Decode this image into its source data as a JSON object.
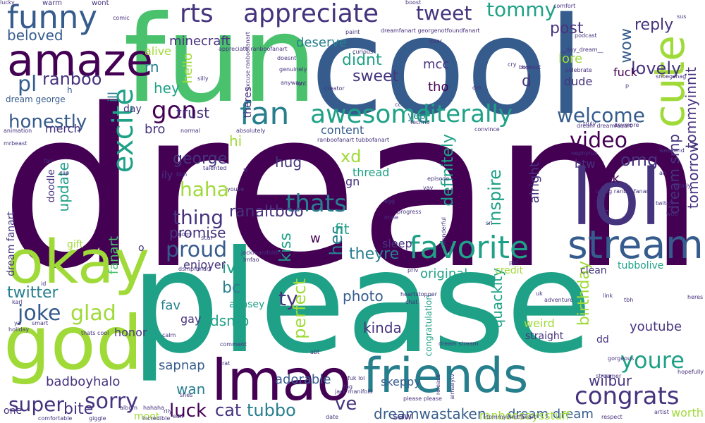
{
  "palette": {
    "purple": "#440154",
    "indigo": "#46337e",
    "blue": "#365c8d",
    "steel": "#277f8e",
    "teal": "#1fa187",
    "green": "#4ac16d",
    "lime": "#a0da39",
    "yellow": "#fde725"
  },
  "words": [
    {
      "t": "dream",
      "c": "purple"
    },
    {
      "t": "please",
      "c": "teal"
    },
    {
      "t": "cool",
      "c": "blue"
    },
    {
      "t": "fun",
      "c": "green"
    },
    {
      "t": "god",
      "c": "lime"
    },
    {
      "t": "okay",
      "c": "lime"
    },
    {
      "t": "lol",
      "c": "indigo"
    },
    {
      "t": "lmao",
      "c": "purple"
    },
    {
      "t": "friends",
      "c": "steel"
    },
    {
      "t": "amaze",
      "c": "purple"
    },
    {
      "t": "funny",
      "c": "blue"
    },
    {
      "t": "cute",
      "c": "lime"
    },
    {
      "t": "stream",
      "c": "blue"
    },
    {
      "t": "favorite",
      "c": "teal"
    },
    {
      "t": "rts",
      "c": "indigo"
    },
    {
      "t": "appreciate",
      "c": "indigo"
    },
    {
      "t": "excite",
      "c": "teal"
    },
    {
      "t": "fan",
      "c": "steel"
    },
    {
      "t": "awesome",
      "c": "teal"
    },
    {
      "t": "literally",
      "c": "teal"
    },
    {
      "t": "congrats",
      "c": "indigo"
    },
    {
      "t": "youre",
      "c": "teal"
    },
    {
      "t": "tweet",
      "c": "indigo"
    },
    {
      "t": "tommy",
      "c": "teal"
    },
    {
      "t": "lovely",
      "c": "indigo"
    },
    {
      "t": "reply",
      "c": "indigo"
    },
    {
      "t": "wow",
      "c": "blue"
    },
    {
      "t": "post",
      "c": "indigo"
    },
    {
      "t": "dream smp",
      "c": "indigo"
    },
    {
      "t": "tommyinnit",
      "c": "indigo"
    },
    {
      "t": "tomorrow",
      "c": "indigo"
    },
    {
      "t": "welcome",
      "c": "blue"
    },
    {
      "t": "video",
      "c": "purple"
    },
    {
      "t": "omg",
      "c": "indigo"
    },
    {
      "t": "thats",
      "c": "steel"
    },
    {
      "t": "gon",
      "c": "purple"
    },
    {
      "t": "haha",
      "c": "lime"
    },
    {
      "t": "thing",
      "c": "indigo"
    },
    {
      "t": "proud",
      "c": "blue"
    },
    {
      "t": "sorry",
      "c": "indigo"
    },
    {
      "t": "super",
      "c": "indigo"
    },
    {
      "t": "joke",
      "c": "blue"
    },
    {
      "t": "glad",
      "c": "lime"
    },
    {
      "t": "twitter",
      "c": "steel"
    },
    {
      "t": "honestly",
      "c": "blue"
    },
    {
      "t": "pl",
      "c": "blue"
    },
    {
      "t": "beloved",
      "c": "blue"
    },
    {
      "t": "ranboo",
      "c": "indigo"
    },
    {
      "t": "minecraft",
      "c": "indigo"
    },
    {
      "t": "didnt",
      "c": "teal"
    },
    {
      "t": "sweet",
      "c": "indigo"
    },
    {
      "t": "deserve",
      "c": "steel"
    },
    {
      "t": "mcc",
      "c": "indigo"
    },
    {
      "t": "tho",
      "c": "purple"
    },
    {
      "t": "lore",
      "c": "lime"
    },
    {
      "t": "dude",
      "c": "indigo"
    },
    {
      "t": "fuck",
      "c": "purple"
    },
    {
      "t": "d",
      "c": "indigo"
    },
    {
      "t": "trust",
      "c": "indigo"
    },
    {
      "t": "hey",
      "c": "teal"
    },
    {
      "t": "hello",
      "c": "lime"
    },
    {
      "t": "rn",
      "c": "steel"
    },
    {
      "t": "alive",
      "c": "lime"
    },
    {
      "t": "ill",
      "c": "steel"
    },
    {
      "t": "hi",
      "c": "lime"
    },
    {
      "t": "hug",
      "c": "indigo"
    },
    {
      "t": "xd",
      "c": "lime"
    },
    {
      "t": "george",
      "c": "indigo"
    },
    {
      "t": "update",
      "c": "teal"
    },
    {
      "t": "ranaltboo",
      "c": "indigo"
    },
    {
      "t": "definitely",
      "c": "teal"
    },
    {
      "t": "inspire",
      "c": "teal"
    },
    {
      "t": "alright",
      "c": "indigo"
    },
    {
      "t": "idk",
      "c": "purple"
    },
    {
      "t": "btw",
      "c": "indigo"
    },
    {
      "t": "hes",
      "c": "steel"
    },
    {
      "t": "theyre",
      "c": "steel"
    },
    {
      "t": "ive",
      "c": "teal"
    },
    {
      "t": "bc",
      "c": "steel"
    },
    {
      "t": "fav",
      "c": "steel"
    },
    {
      "t": "dsmp",
      "c": "teal"
    },
    {
      "t": "ty",
      "c": "indigo"
    },
    {
      "t": "kinda",
      "c": "indigo"
    },
    {
      "t": "original",
      "c": "teal"
    },
    {
      "t": "perfect",
      "c": "lime"
    },
    {
      "t": "kiss",
      "c": "teal"
    },
    {
      "t": "quackity",
      "c": "teal"
    },
    {
      "t": "birthday",
      "c": "lime"
    },
    {
      "t": "youtube",
      "c": "indigo"
    },
    {
      "t": "wilbur",
      "c": "indigo"
    },
    {
      "t": "ve",
      "c": "indigo"
    },
    {
      "t": "tubbo",
      "c": "steel"
    },
    {
      "t": "cat",
      "c": "indigo"
    },
    {
      "t": "luck",
      "c": "purple"
    },
    {
      "t": "wan",
      "c": "steel"
    },
    {
      "t": "bite",
      "c": "indigo"
    },
    {
      "t": "badboyhalo",
      "c": "indigo"
    },
    {
      "t": "sapnap",
      "c": "blue"
    },
    {
      "t": "adorable",
      "c": "blue"
    },
    {
      "t": "skeppy",
      "c": "blue"
    },
    {
      "t": "dreamwastaken",
      "c": "blue"
    },
    {
      "t": "dream dream",
      "c": "blue"
    },
    {
      "t": "worth",
      "c": "lime"
    },
    {
      "t": "ranboosaysstuff",
      "c": "lime"
    },
    {
      "t": "promise",
      "c": "indigo"
    },
    {
      "t": "content",
      "c": "blue"
    },
    {
      "t": "fanart",
      "c": "green"
    },
    {
      "t": "bro",
      "c": "indigo"
    },
    {
      "t": "merch",
      "c": "indigo"
    },
    {
      "t": "day",
      "c": "indigo"
    },
    {
      "t": "gift",
      "c": "lime"
    },
    {
      "t": "dream fanart",
      "c": "indigo"
    },
    {
      "t": "sleep",
      "c": "indigo"
    },
    {
      "t": "fit",
      "c": "teal"
    },
    {
      "t": "yep",
      "c": "steel"
    },
    {
      "t": "thread",
      "c": "teal"
    },
    {
      "t": "gn",
      "c": "indigo"
    },
    {
      "t": "w",
      "c": "purple"
    },
    {
      "t": "enjoyer",
      "c": "indigo"
    },
    {
      "t": "aimsey",
      "c": "teal"
    },
    {
      "t": "gay",
      "c": "indigo"
    },
    {
      "t": "photo",
      "c": "blue"
    },
    {
      "t": "congratulation",
      "c": "teal"
    },
    {
      "t": "weird",
      "c": "lime"
    },
    {
      "t": "straight",
      "c": "indigo"
    },
    {
      "t": "clean",
      "c": "indigo"
    },
    {
      "t": "tubbolive",
      "c": "teal"
    },
    {
      "t": "credit",
      "c": "lime"
    },
    {
      "t": "honor",
      "c": "indigo"
    },
    {
      "t": "moot",
      "c": "lime"
    },
    {
      "t": "saw",
      "c": "indigo"
    },
    {
      "t": "dd",
      "c": "indigo"
    },
    {
      "t": "one",
      "c": "indigo"
    },
    {
      "t": "dream george",
      "c": "blue"
    },
    {
      "t": "h",
      "c": "blue"
    },
    {
      "t": "ily",
      "c": "indigo"
    },
    {
      "t": "o",
      "c": "indigo"
    },
    {
      "t": "doodle",
      "c": "indigo"
    },
    {
      "t": "n",
      "c": "indigo"
    },
    {
      "t": "theres",
      "c": "indigo"
    },
    {
      "t": "warm",
      "c": "indigo"
    },
    {
      "t": "wont",
      "c": "indigo"
    },
    {
      "t": "comic",
      "c": "indigo"
    },
    {
      "t": "boost",
      "c": "indigo"
    },
    {
      "t": "comfort",
      "c": "indigo"
    },
    {
      "t": "podcast",
      "c": "indigo"
    },
    {
      "t": "sus",
      "c": "indigo"
    },
    {
      "t": "honest",
      "c": "indigo"
    },
    {
      "t": "dreamfanart georgenotfoundfanart",
      "c": "indigo"
    },
    {
      "t": "appreciate ranboofanart",
      "c": "indigo"
    },
    {
      "t": "excuse ranboofanart",
      "c": "indigo"
    },
    {
      "t": "paint",
      "c": "indigo"
    },
    {
      "t": "dear",
      "c": "indigo"
    },
    {
      "t": "curious",
      "c": "indigo"
    },
    {
      "t": "__day_dream__",
      "c": "indigo"
    },
    {
      "t": "doesnt",
      "c": "indigo"
    },
    {
      "t": "genuinely",
      "c": "indigo"
    },
    {
      "t": "cry",
      "c": "indigo"
    },
    {
      "t": "boys",
      "c": "indigo"
    },
    {
      "t": "celebrate",
      "c": "indigo"
    },
    {
      "t": "snoegsnag",
      "c": "indigo"
    },
    {
      "t": "silly",
      "c": "indigo"
    },
    {
      "t": "anyway",
      "c": "indigo"
    },
    {
      "t": "creator",
      "c": "indigo"
    },
    {
      "t": "p",
      "c": "indigo"
    },
    {
      "t": "isnt",
      "c": "indigo"
    },
    {
      "t": "dm",
      "c": "indigo"
    },
    {
      "t": "cc",
      "c": "indigo"
    },
    {
      "t": "techno",
      "c": "indigo"
    },
    {
      "t": "convince",
      "c": "indigo"
    },
    {
      "t": "dream dreamfanart",
      "c": "indigo"
    },
    {
      "t": "truly",
      "c": "indigo"
    },
    {
      "t": "anymore",
      "c": "indigo"
    },
    {
      "t": "animation",
      "c": "indigo"
    },
    {
      "t": "normal",
      "c": "indigo"
    },
    {
      "t": "absolutely",
      "c": "indigo"
    },
    {
      "t": "ranboofanart tubbofanart",
      "c": "indigo"
    },
    {
      "t": "mrbeast",
      "c": "indigo"
    },
    {
      "t": "fair",
      "c": "indigo"
    },
    {
      "t": "clip",
      "c": "indigo"
    },
    {
      "t": "bbh",
      "c": "indigo"
    },
    {
      "t": "talented",
      "c": "indigo"
    },
    {
      "t": "tt",
      "c": "indigo"
    },
    {
      "t": "episode",
      "c": "indigo"
    },
    {
      "t": "yay",
      "c": "indigo"
    },
    {
      "t": "nephyrus",
      "c": "indigo"
    },
    {
      "t": "untag ranboofanart",
      "c": "indigo"
    },
    {
      "t": "weekend",
      "c": "indigo"
    },
    {
      "t": "ah",
      "c": "indigo"
    },
    {
      "t": "totally",
      "c": "indigo"
    },
    {
      "t": "youve",
      "c": "indigo"
    },
    {
      "t": "egg",
      "c": "indigo"
    },
    {
      "t": "progress",
      "c": "indigo"
    },
    {
      "t": "twitch",
      "c": "indigo"
    },
    {
      "t": "woo",
      "c": "indigo"
    },
    {
      "t": "mine",
      "c": "indigo"
    },
    {
      "t": "mom",
      "c": "indigo"
    },
    {
      "t": "scar",
      "c": "indigo"
    },
    {
      "t": "wonderful",
      "c": "indigo"
    },
    {
      "t": "srl",
      "c": "indigo"
    },
    {
      "t": "jackmanifoldtv",
      "c": "indigo"
    },
    {
      "t": "lmfao",
      "c": "indigo"
    },
    {
      "t": "dsmpfanart",
      "c": "indigo"
    },
    {
      "t": "priv",
      "c": "indigo"
    },
    {
      "t": "ppl",
      "c": "indigo"
    },
    {
      "t": "karl",
      "c": "indigo"
    },
    {
      "t": "ya",
      "c": "indigo"
    },
    {
      "t": "smart",
      "c": "indigo"
    },
    {
      "t": "holiday",
      "c": "indigo"
    },
    {
      "t": "id",
      "c": "indigo"
    },
    {
      "t": "thats cool",
      "c": "indigo"
    },
    {
      "t": "uk",
      "c": "indigo"
    },
    {
      "t": "adventure",
      "c": "indigo"
    },
    {
      "t": "heartstopper",
      "c": "indigo"
    },
    {
      "t": "chat",
      "c": "indigo"
    },
    {
      "t": "link",
      "c": "indigo"
    },
    {
      "t": "tbh",
      "c": "indigo"
    },
    {
      "t": "heres",
      "c": "indigo"
    },
    {
      "t": "calm",
      "c": "indigo"
    },
    {
      "t": "comment",
      "c": "indigo"
    },
    {
      "t": "dream stream",
      "c": "indigo"
    },
    {
      "t": "abt",
      "c": "indigo"
    },
    {
      "t": "gorgeous",
      "c": "indigo"
    },
    {
      "t": "rat",
      "c": "indigo"
    },
    {
      "t": "fuk lol",
      "c": "indigo"
    },
    {
      "t": "tag",
      "c": "indigo"
    },
    {
      "t": "release",
      "c": "indigo"
    },
    {
      "t": "aimseytv",
      "c": "indigo"
    },
    {
      "t": "streamer",
      "c": "indigo"
    },
    {
      "t": "hopefully",
      "c": "indigo"
    },
    {
      "t": "shes",
      "c": "indigo"
    },
    {
      "t": "jack manifold",
      "c": "indigo"
    },
    {
      "t": "please please",
      "c": "indigo"
    },
    {
      "t": "artist",
      "c": "indigo"
    },
    {
      "t": "edit",
      "c": "indigo"
    },
    {
      "t": "album",
      "c": "indigo"
    },
    {
      "t": "hahaha",
      "c": "indigo"
    },
    {
      "t": "rlly",
      "c": "indigo"
    },
    {
      "t": "comfortable",
      "c": "indigo"
    },
    {
      "t": "giggle",
      "c": "indigo"
    },
    {
      "t": "incredible",
      "c": "indigo"
    },
    {
      "t": "date",
      "c": "indigo"
    },
    {
      "t": "tommyinnitfanart",
      "c": "indigo"
    },
    {
      "t": "respect",
      "c": "indigo"
    },
    {
      "t": "lucky",
      "c": "indigo"
    }
  ]
}
